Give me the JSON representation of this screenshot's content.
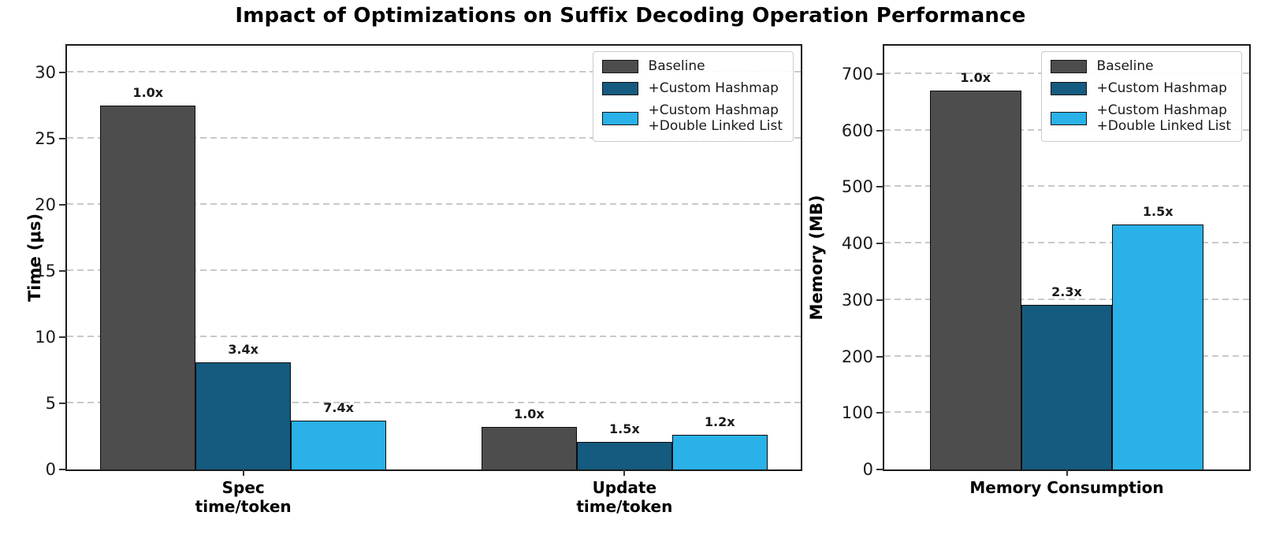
{
  "title": "Impact of Optimizations on Suffix Decoding Operation Performance",
  "colors": {
    "baseline": "#4d4d4d",
    "custom_hashmap": "#155a7f",
    "custom_hashmap_dll": "#29b1e8",
    "bar_edge": "#0d0d0d",
    "grid": "#c9c9c9"
  },
  "chart_data": [
    {
      "type": "bar",
      "ylabel": "Time (μs)",
      "ylim": [
        0,
        32
      ],
      "yticks": [
        0,
        5,
        10,
        15,
        20,
        25,
        30
      ],
      "xlim": [
        -0.4625,
        1.4625
      ],
      "bar_width": 0.25,
      "grid": "horizontal-dashed",
      "legend_position": "upper right",
      "categories": [
        "Spec\ntime/token",
        "Update\ntime/token"
      ],
      "series": [
        {
          "name": "Baseline",
          "color": "#4d4d4d",
          "values": [
            27.5,
            3.2
          ],
          "bar_labels": [
            "1.0x",
            "1.0x"
          ]
        },
        {
          "name": "+Custom Hashmap",
          "color": "#155a7f",
          "values": [
            8.1,
            2.1
          ],
          "bar_labels": [
            "3.4x",
            "1.5x"
          ]
        },
        {
          "name": "+Custom Hashmap\n+Double Linked List",
          "color": "#29b1e8",
          "values": [
            3.7,
            2.6
          ],
          "bar_labels": [
            "7.4x",
            "1.2x"
          ]
        }
      ]
    },
    {
      "type": "bar",
      "ylabel": "Memory (MB)",
      "ylim": [
        0,
        750
      ],
      "yticks": [
        0,
        100,
        200,
        300,
        400,
        500,
        600,
        700
      ],
      "xlim": [
        -0.5,
        0.5
      ],
      "bar_width": 0.25,
      "grid": "horizontal-dashed",
      "legend_position": "upper right",
      "categories": [
        "Memory Consumption"
      ],
      "series": [
        {
          "name": "Baseline",
          "color": "#4d4d4d",
          "values": [
            670
          ],
          "bar_labels": [
            "1.0x"
          ]
        },
        {
          "name": "+Custom Hashmap",
          "color": "#155a7f",
          "values": [
            292
          ],
          "bar_labels": [
            "2.3x"
          ]
        },
        {
          "name": "+Custom Hashmap\n+Double Linked List",
          "color": "#29b1e8",
          "values": [
            433
          ],
          "bar_labels": [
            "1.5x"
          ]
        }
      ]
    }
  ]
}
